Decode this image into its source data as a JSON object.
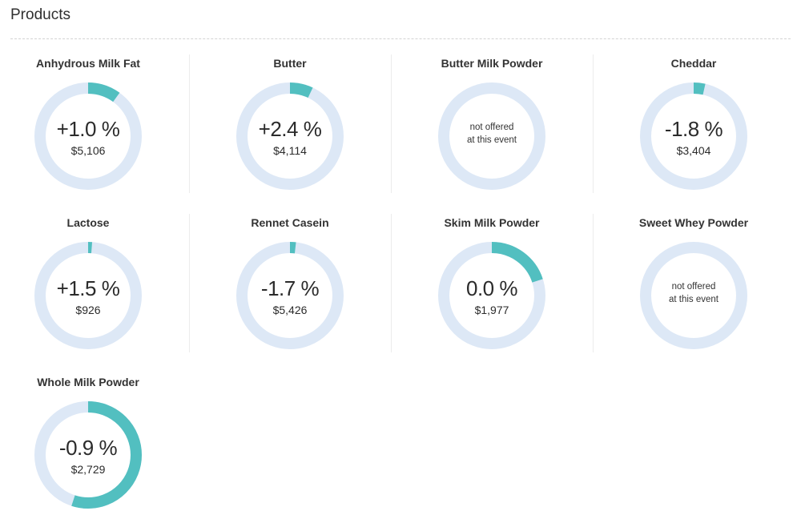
{
  "page": {
    "title": "Products"
  },
  "colors": {
    "track": "#dde8f6",
    "fill": "#52bfc0"
  },
  "products": [
    {
      "name": "Anhydrous Milk Fat",
      "offered": true,
      "change": "+1.0 %",
      "price": "$5,106",
      "fill_fraction": 0.1
    },
    {
      "name": "Butter",
      "offered": true,
      "change": "+2.4 %",
      "price": "$4,114",
      "fill_fraction": 0.07
    },
    {
      "name": "Butter Milk Powder",
      "offered": false,
      "na_line1": "not offered",
      "na_line2": "at this event"
    },
    {
      "name": "Cheddar",
      "offered": true,
      "change": "-1.8 %",
      "price": "$3,404",
      "fill_fraction": 0.035
    },
    {
      "name": "Lactose",
      "offered": true,
      "change": "+1.5 %",
      "price": "$926",
      "fill_fraction": 0.012
    },
    {
      "name": "Rennet Casein",
      "offered": true,
      "change": "-1.7 %",
      "price": "$5,426",
      "fill_fraction": 0.018
    },
    {
      "name": "Skim Milk Powder",
      "offered": true,
      "change": "0.0 %",
      "price": "$1,977",
      "fill_fraction": 0.2
    },
    {
      "name": "Sweet Whey Powder",
      "offered": false,
      "na_line1": "not offered",
      "na_line2": "at this event"
    },
    {
      "name": "Whole Milk Powder",
      "offered": true,
      "change": "-0.9 %",
      "price": "$2,729",
      "fill_fraction": 0.55
    }
  ]
}
